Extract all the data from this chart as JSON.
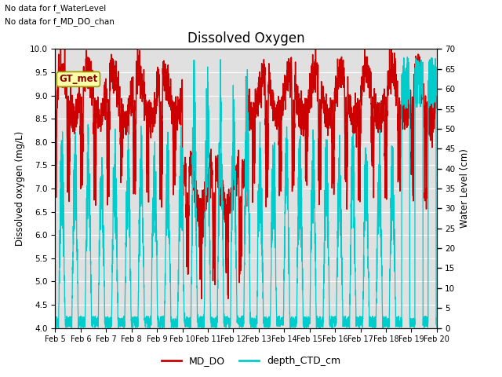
{
  "title": "Dissolved Oxygen",
  "ylabel_left": "Dissolved oxygen (mg/L)",
  "ylabel_right": "Water Level (cm)",
  "ylim_left": [
    4.0,
    10.0
  ],
  "ylim_right": [
    0,
    70
  ],
  "yticks_left": [
    4.0,
    4.5,
    5.0,
    5.5,
    6.0,
    6.5,
    7.0,
    7.5,
    8.0,
    8.5,
    9.0,
    9.5,
    10.0
  ],
  "yticks_right": [
    0,
    5,
    10,
    15,
    20,
    25,
    30,
    35,
    40,
    45,
    50,
    55,
    60,
    65,
    70
  ],
  "note1": "No data for f_WaterLevel",
  "note2": "No data for f_MD_DO_chan",
  "box_label": "GT_met",
  "legend_entries": [
    "MD_DO",
    "depth_CTD_cm"
  ],
  "legend_colors": [
    "#cc0000",
    "#00cccc"
  ],
  "plot_bg_color": "#e0e0e0",
  "color_MD_DO": "#cc0000",
  "color_CTD": "#00cccc",
  "xticklabels": [
    "Feb 5",
    "Feb 6",
    "Feb 7",
    "Feb 8",
    "Feb 9",
    "Feb 10",
    "Feb 11",
    "Feb 12",
    "Feb 13",
    "Feb 14",
    "Feb 15",
    "Feb 16",
    "Feb 17",
    "Feb 18",
    "Feb 19",
    "Feb 20"
  ],
  "n_days": 15,
  "n_pts": 3000
}
